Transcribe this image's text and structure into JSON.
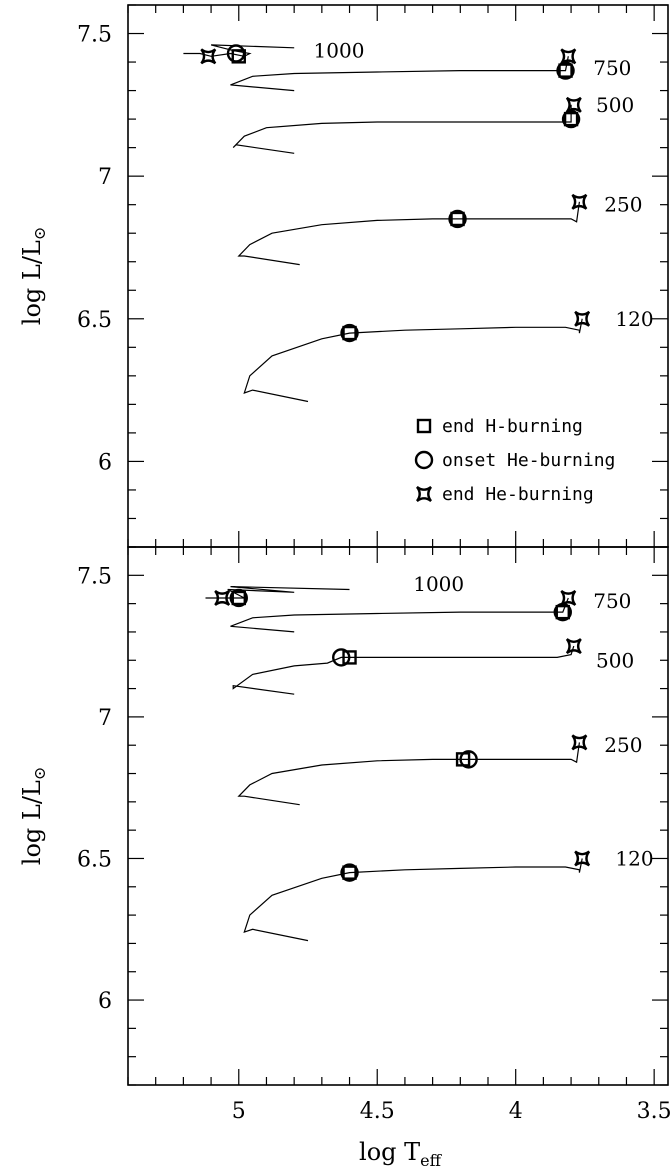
{
  "chart_data": [
    {
      "type": "line",
      "panel": "top",
      "xlabel": "log T_eff",
      "ylabel": "log L/L_sun",
      "xlim": [
        5.4,
        3.45
      ],
      "ylim": [
        5.7,
        7.6
      ],
      "x_ticks": [
        "5",
        "4.5",
        "4",
        "3.5"
      ],
      "y_ticks": [
        "6",
        "6.5",
        "7",
        "7.5"
      ],
      "legend": {
        "placement": "lower-right",
        "entries": [
          {
            "marker": "square",
            "label": "end H-burning"
          },
          {
            "marker": "circle",
            "label": "onset He-burning"
          },
          {
            "marker": "star",
            "label": "end He-burning"
          }
        ]
      },
      "series": [
        {
          "name": "120",
          "label": "120",
          "label_pos": [
            3.64,
            6.5
          ],
          "x": [
            4.75,
            4.95,
            4.98,
            4.96,
            4.88,
            4.7,
            4.6,
            4.4,
            4.2,
            4.0,
            3.82,
            3.77,
            3.77,
            3.76
          ],
          "y": [
            6.21,
            6.25,
            6.24,
            6.3,
            6.37,
            6.43,
            6.45,
            6.46,
            6.465,
            6.47,
            6.47,
            6.46,
            6.45,
            6.5
          ],
          "end_h": [
            4.6,
            6.45
          ],
          "onset_he": [
            4.6,
            6.45
          ],
          "end_he": [
            3.76,
            6.5
          ]
        },
        {
          "name": "250",
          "label": "250",
          "label_pos": [
            3.68,
            6.9
          ],
          "x": [
            4.78,
            4.98,
            5.0,
            4.96,
            4.88,
            4.7,
            4.5,
            4.3,
            4.21,
            4.0,
            3.8,
            3.78,
            3.77
          ],
          "y": [
            6.69,
            6.72,
            6.72,
            6.76,
            6.8,
            6.83,
            6.845,
            6.85,
            6.85,
            6.85,
            6.85,
            6.84,
            6.91
          ],
          "end_h": [
            4.21,
            6.85
          ],
          "onset_he": [
            4.21,
            6.85
          ],
          "end_he": [
            3.77,
            6.91
          ]
        },
        {
          "name": "500",
          "label": "500",
          "label_pos": [
            3.71,
            7.25
          ],
          "x": [
            4.8,
            5.01,
            5.02,
            4.98,
            4.9,
            4.7,
            4.5,
            4.2,
            4.0,
            3.8,
            3.8
          ],
          "y": [
            7.08,
            7.11,
            7.1,
            7.14,
            7.17,
            7.185,
            7.19,
            7.19,
            7.19,
            7.19,
            7.25
          ],
          "end_h": [
            3.8,
            7.2
          ],
          "onset_he": [
            3.8,
            7.2
          ],
          "end_he": [
            3.79,
            7.25
          ]
        },
        {
          "name": "750",
          "label": "750",
          "label_pos": [
            3.72,
            7.38
          ],
          "x": [
            4.8,
            5.03,
            5.03,
            4.95,
            4.8,
            4.5,
            4.2,
            3.9,
            3.82,
            3.81
          ],
          "y": [
            7.3,
            7.32,
            7.32,
            7.35,
            7.36,
            7.365,
            7.37,
            7.37,
            7.37,
            7.42
          ],
          "end_h": [
            3.82,
            7.37
          ],
          "onset_he": [
            3.82,
            7.37
          ],
          "end_he": [
            3.81,
            7.42
          ]
        },
        {
          "name": "1000",
          "label": "1000",
          "label_pos": [
            4.73,
            7.44
          ],
          "x": [
            5.2,
            5.14,
            5.1,
            5.03,
            4.98,
            4.96,
            5.02,
            5.1,
            4.8
          ],
          "y": [
            7.43,
            7.43,
            7.42,
            7.43,
            7.42,
            7.43,
            7.44,
            7.46,
            7.45
          ],
          "end_h": [
            5.0,
            7.42
          ],
          "onset_he": [
            5.01,
            7.43
          ],
          "end_he": [
            5.11,
            7.42
          ]
        }
      ]
    },
    {
      "type": "line",
      "panel": "bottom",
      "xlabel": "log T_eff",
      "ylabel": "log L/L_sun",
      "xlim": [
        5.4,
        3.45
      ],
      "ylim": [
        5.7,
        7.6
      ],
      "x_ticks": [
        "5",
        "4.5",
        "4",
        "3.5"
      ],
      "y_ticks": [
        "6",
        "6.5",
        "7",
        "7.5"
      ],
      "series": [
        {
          "name": "120",
          "label": "120",
          "label_pos": [
            3.64,
            6.5
          ],
          "x": [
            4.75,
            4.95,
            4.98,
            4.96,
            4.88,
            4.7,
            4.6,
            4.4,
            4.2,
            4.0,
            3.82,
            3.77,
            3.77,
            3.76
          ],
          "y": [
            6.21,
            6.25,
            6.24,
            6.3,
            6.37,
            6.43,
            6.45,
            6.46,
            6.465,
            6.47,
            6.47,
            6.46,
            6.45,
            6.5
          ],
          "end_h": [
            4.6,
            6.45
          ],
          "onset_he": [
            4.6,
            6.45
          ],
          "end_he": [
            3.76,
            6.5
          ]
        },
        {
          "name": "250",
          "label": "250",
          "label_pos": [
            3.68,
            6.9
          ],
          "x": [
            4.78,
            4.98,
            5.0,
            4.96,
            4.88,
            4.7,
            4.5,
            4.3,
            4.19,
            4.0,
            3.8,
            3.78,
            3.77
          ],
          "y": [
            6.69,
            6.72,
            6.72,
            6.76,
            6.8,
            6.83,
            6.845,
            6.85,
            6.85,
            6.85,
            6.85,
            6.84,
            6.91
          ],
          "end_h": [
            4.19,
            6.85
          ],
          "onset_he": [
            4.17,
            6.85
          ],
          "end_he": [
            3.77,
            6.91
          ]
        },
        {
          "name": "500",
          "label": "500",
          "label_pos": [
            3.71,
            7.2
          ],
          "x": [
            4.8,
            5.02,
            5.02,
            4.95,
            4.8,
            4.68,
            4.63,
            4.6,
            4.4,
            4.1,
            3.85,
            3.8,
            3.79
          ],
          "y": [
            7.08,
            7.11,
            7.1,
            7.15,
            7.18,
            7.19,
            7.21,
            7.21,
            7.21,
            7.21,
            7.21,
            7.22,
            7.25
          ],
          "end_h": [
            4.6,
            7.21
          ],
          "onset_he": [
            4.63,
            7.21
          ],
          "end_he": [
            3.79,
            7.25
          ]
        },
        {
          "name": "750",
          "label": "750",
          "label_pos": [
            3.72,
            7.41
          ],
          "x": [
            4.8,
            5.03,
            5.03,
            4.95,
            4.8,
            4.5,
            4.2,
            3.9,
            3.83,
            3.81
          ],
          "y": [
            7.3,
            7.32,
            7.32,
            7.35,
            7.36,
            7.365,
            7.37,
            7.37,
            7.37,
            7.42
          ],
          "end_h": [
            3.83,
            7.37
          ],
          "onset_he": [
            3.83,
            7.37
          ],
          "end_he": [
            3.81,
            7.42
          ]
        },
        {
          "name": "1000",
          "label": "1000",
          "label_pos": [
            4.37,
            7.47
          ],
          "x": [
            5.12,
            5.04,
            5.0,
            4.98,
            5.0,
            5.04,
            4.8,
            5.03,
            4.6
          ],
          "y": [
            7.42,
            7.42,
            7.42,
            7.42,
            7.43,
            7.45,
            7.44,
            7.46,
            7.45
          ],
          "end_h": [
            5.0,
            7.42
          ],
          "onset_he": [
            5.0,
            7.42
          ],
          "end_he": [
            5.06,
            7.42
          ]
        }
      ]
    }
  ]
}
